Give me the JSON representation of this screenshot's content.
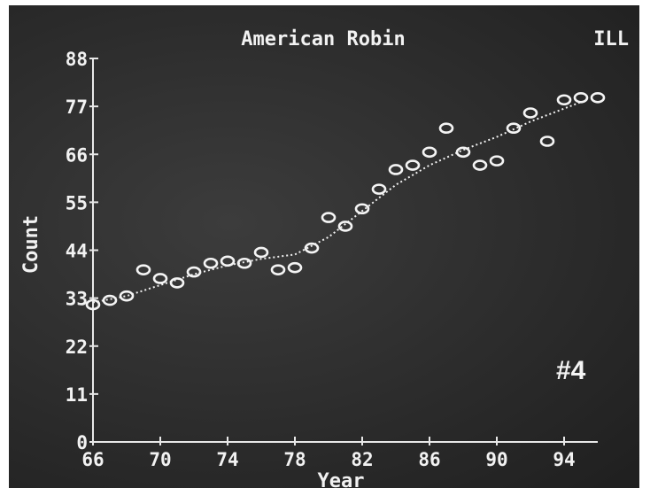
{
  "chart_data": {
    "type": "scatter",
    "title": "American Robin",
    "region": "ILL",
    "annotation": "#4",
    "xlabel": "Year",
    "ylabel": "Count",
    "xlim": [
      66,
      96
    ],
    "ylim": [
      0,
      88
    ],
    "x_ticks": [
      "66",
      "70",
      "74",
      "78",
      "82",
      "86",
      "90",
      "94"
    ],
    "x_tick_values": [
      66,
      70,
      74,
      78,
      82,
      86,
      90,
      94
    ],
    "y_ticks": [
      "0",
      "11",
      "22",
      "33",
      "44",
      "55",
      "66",
      "77",
      "88"
    ],
    "y_tick_values": [
      0,
      11,
      22,
      33,
      44,
      55,
      66,
      77,
      88
    ],
    "series": [
      {
        "x": [
          66,
          67,
          68,
          69,
          70,
          71,
          72,
          73,
          74,
          75,
          76,
          77,
          78,
          79,
          80,
          81,
          82,
          83,
          84,
          85,
          86,
          87,
          88,
          89,
          90,
          91,
          92,
          93,
          94,
          95,
          96
        ],
        "values": [
          31.5,
          32.5,
          33.5,
          39.5,
          37.5,
          36.5,
          39,
          41,
          41.5,
          41,
          43.5,
          39.5,
          40,
          44.5,
          51.5,
          49.5,
          53.5,
          58,
          62.5,
          63.5,
          66.5,
          72,
          66.5,
          63.5,
          64.5,
          72,
          75.5,
          69,
          78.5,
          79,
          79
        ]
      },
      {
        "type": "line",
        "x": [
          66,
          68,
          70,
          72,
          74,
          76,
          78,
          80,
          82,
          84,
          86,
          88,
          90,
          92,
          94,
          95
        ],
        "values": [
          32,
          33.5,
          36,
          38.5,
          40.5,
          42,
          43,
          47,
          53,
          59,
          63.5,
          67,
          70,
          73.5,
          76.5,
          78
        ]
      }
    ]
  }
}
